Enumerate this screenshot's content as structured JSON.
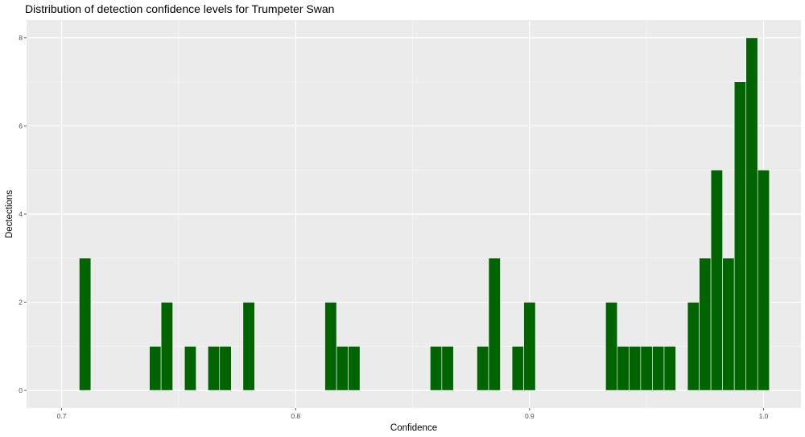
{
  "chart_data": {
    "type": "bar",
    "title": "Distribution of detection confidence levels for Trumpeter Swan",
    "xlabel": "Confidence",
    "ylabel": "Dectections",
    "xlim": [
      0.685,
      1.016
    ],
    "ylim": [
      -0.4,
      8.4
    ],
    "x_ticks": [
      0.7,
      0.8,
      0.9,
      1.0
    ],
    "x_tick_labels": [
      "0.7",
      "0.8",
      "0.9",
      "1.0"
    ],
    "y_ticks": [
      0,
      2,
      4,
      6,
      8
    ],
    "y_tick_labels": [
      "0",
      "2",
      "4",
      "6",
      "8"
    ],
    "bin_width": 0.005,
    "bins": [
      {
        "x": 0.71,
        "count": 3
      },
      {
        "x": 0.74,
        "count": 1
      },
      {
        "x": 0.745,
        "count": 2
      },
      {
        "x": 0.755,
        "count": 1
      },
      {
        "x": 0.765,
        "count": 1
      },
      {
        "x": 0.77,
        "count": 1
      },
      {
        "x": 0.78,
        "count": 2
      },
      {
        "x": 0.815,
        "count": 2
      },
      {
        "x": 0.82,
        "count": 1
      },
      {
        "x": 0.825,
        "count": 1
      },
      {
        "x": 0.86,
        "count": 1
      },
      {
        "x": 0.865,
        "count": 1
      },
      {
        "x": 0.88,
        "count": 1
      },
      {
        "x": 0.885,
        "count": 3
      },
      {
        "x": 0.895,
        "count": 1
      },
      {
        "x": 0.9,
        "count": 2
      },
      {
        "x": 0.935,
        "count": 2
      },
      {
        "x": 0.94,
        "count": 1
      },
      {
        "x": 0.945,
        "count": 1
      },
      {
        "x": 0.95,
        "count": 1
      },
      {
        "x": 0.955,
        "count": 1
      },
      {
        "x": 0.96,
        "count": 1
      },
      {
        "x": 0.97,
        "count": 2
      },
      {
        "x": 0.975,
        "count": 3
      },
      {
        "x": 0.98,
        "count": 5
      },
      {
        "x": 0.985,
        "count": 3
      },
      {
        "x": 0.99,
        "count": 7
      },
      {
        "x": 0.995,
        "count": 8
      },
      {
        "x": 1.0,
        "count": 5
      }
    ],
    "grid": true,
    "colors": {
      "bar_fill": "#006400",
      "bar_outline": "#ffffff",
      "panel_background": "#ebebeb",
      "grid_major": "#ffffff",
      "grid_minor": "#f5f5f5"
    }
  }
}
